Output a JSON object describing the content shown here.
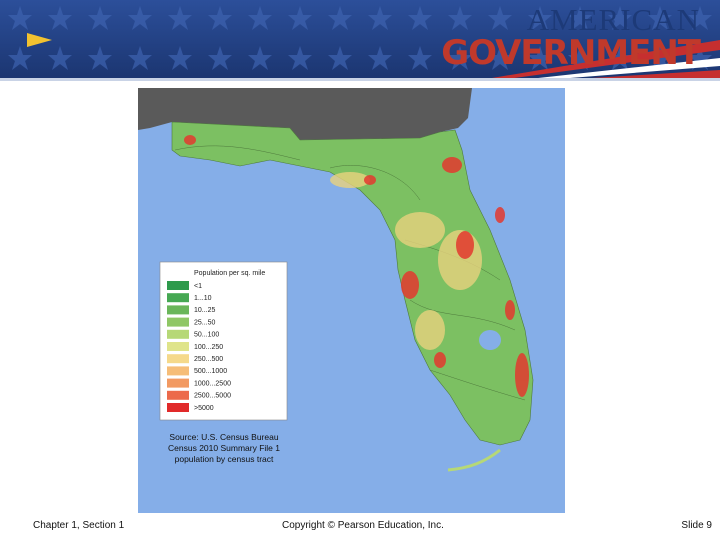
{
  "header": {
    "title_top": "AMERICAN",
    "title_bottom": "GOVERNMENT"
  },
  "legend": {
    "title": "Population per sq. mile",
    "items": [
      {
        "label": "<1",
        "color": "#2e9a4c"
      },
      {
        "label": "1...10",
        "color": "#46a853"
      },
      {
        "label": "10...25",
        "color": "#6ab65a"
      },
      {
        "label": "25...50",
        "color": "#8fc765"
      },
      {
        "label": "50...100",
        "color": "#b6d877"
      },
      {
        "label": "100...250",
        "color": "#dfe48a"
      },
      {
        "label": "250...500",
        "color": "#f5d98a"
      },
      {
        "label": "500...1000",
        "color": "#f6bd78"
      },
      {
        "label": "1000...2500",
        "color": "#f29a62"
      },
      {
        "label": "2500...5000",
        "color": "#ec6a4b"
      },
      {
        "label": ">5000",
        "color": "#e12a2a"
      }
    ]
  },
  "source": [
    "Source: U.S. Census Bureau",
    "Census 2010 Summary File 1",
    "population by census tract"
  ],
  "footer": {
    "left": "Chapter 1, Section 1",
    "center": "Copyright © Pearson Education, Inc.",
    "right": "Slide 9"
  }
}
